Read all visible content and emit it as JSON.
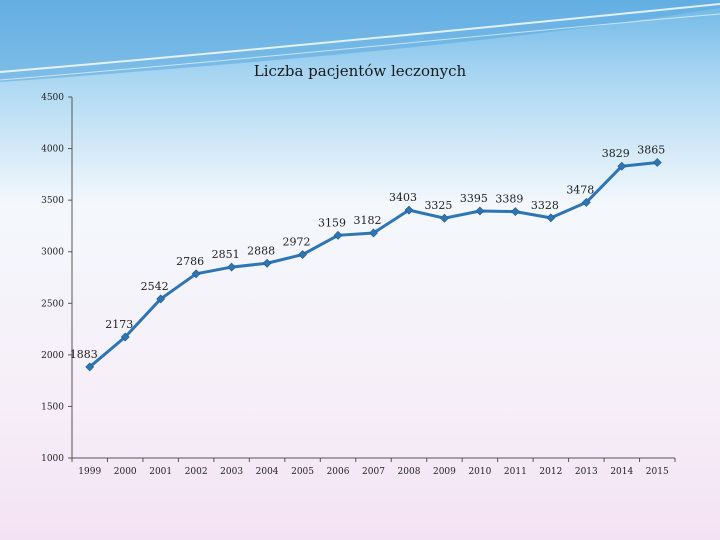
{
  "chart_data": {
    "type": "line",
    "title": "Liczba pacjentów leczonych",
    "x": [
      "1999",
      "2000",
      "2001",
      "2002",
      "2003",
      "2004",
      "2005",
      "2006",
      "2007",
      "2008",
      "2009",
      "2010",
      "2011",
      "2012",
      "2013",
      "2014",
      "2015"
    ],
    "series": [
      {
        "values": [
          1883,
          2173,
          2542,
          2786,
          2851,
          2888,
          2972,
          3159,
          3182,
          3403,
          3325,
          3395,
          3389,
          3328,
          3478,
          3829,
          3865
        ]
      }
    ],
    "y_ticks": [
      "4500",
      "4000",
      "3500",
      "3000",
      "2500",
      "2000",
      "1500",
      "1000"
    ],
    "ylim": [
      1000,
      4500
    ],
    "grid": false,
    "legend": "none",
    "line_color": "#2e75b6",
    "marker": "diamond"
  }
}
